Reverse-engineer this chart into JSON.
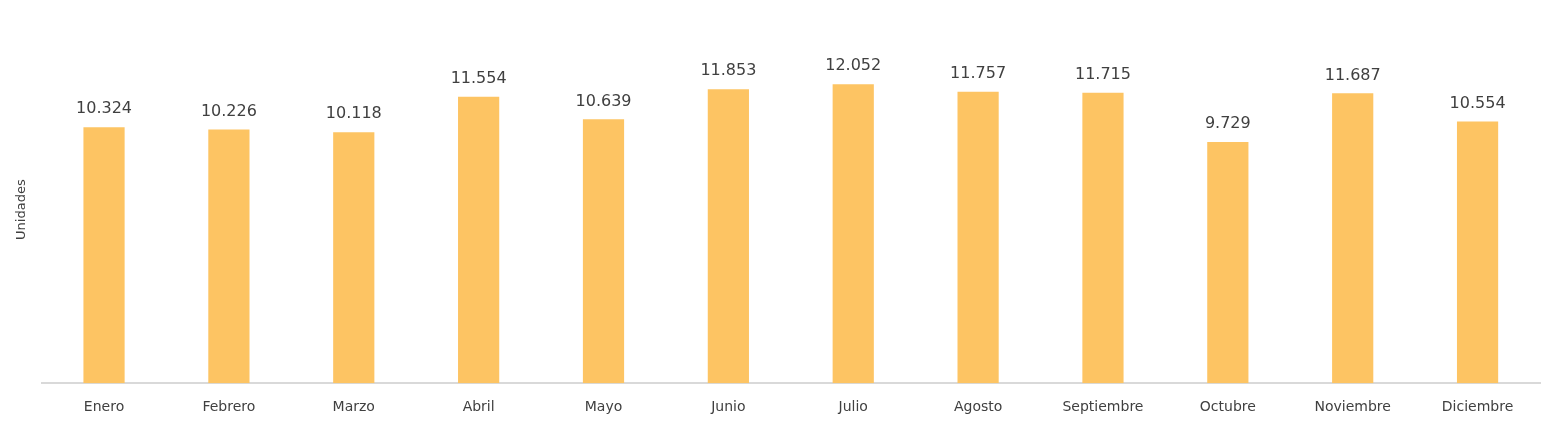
{
  "chart_data": {
    "type": "bar",
    "ylabel": "Unidades",
    "categories": [
      "Enero",
      "Febrero",
      "Marzo",
      "Abril",
      "Mayo",
      "Junio",
      "Julio",
      "Agosto",
      "Septiembre",
      "Octubre",
      "Noviembre",
      "Diciembre"
    ],
    "values": [
      10324,
      10226,
      10118,
      11554,
      10639,
      11853,
      12052,
      11757,
      11715,
      9729,
      11687,
      10554
    ],
    "value_labels": [
      "10.324",
      "10.226",
      "10.118",
      "11.554",
      "10.639",
      "11.853",
      "12.052",
      "11.757",
      "11.715",
      "9.729",
      "11.687",
      "10.554"
    ],
    "color": "#fdc463",
    "grid": false,
    "legend": false,
    "tick_labels": "x"
  }
}
